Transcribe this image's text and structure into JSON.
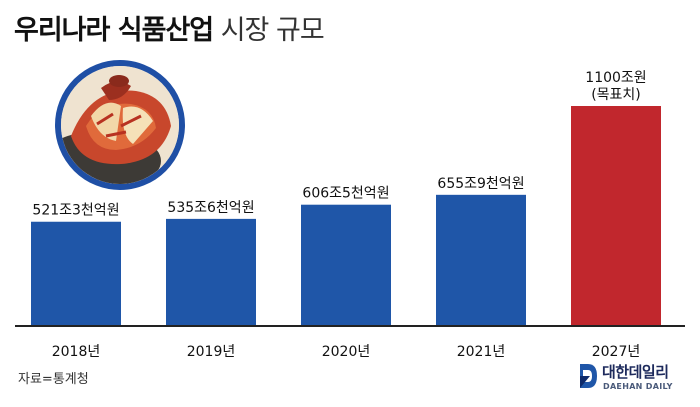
{
  "header": {
    "title_bold": "우리나라 식품산업",
    "title_light": "시장 규모"
  },
  "source": "자료=통계청",
  "logo": {
    "name": "대한데일리",
    "sub": "DAEHAN DAILY"
  },
  "colors": {
    "bar_blue": "#1f56a8",
    "bar_red": "#c1272d",
    "axis": "#222222"
  },
  "chart_data": {
    "type": "bar",
    "categories": [
      "2018년",
      "2019년",
      "2020년",
      "2021년",
      "2027년"
    ],
    "values": [
      521.3,
      535.6,
      606.5,
      655.9,
      1100
    ],
    "data_labels": [
      "521조3천억원",
      "535조6천억원",
      "606조5천억원",
      "655조9천억원",
      "1100조원\n(목표치)"
    ],
    "highlight": [
      false,
      false,
      false,
      false,
      true
    ],
    "title": "우리나라 식품산업 시장 규모",
    "xlabel": "",
    "ylabel": "",
    "ylim": [
      0,
      1280
    ],
    "grid": false,
    "legend": "none"
  }
}
